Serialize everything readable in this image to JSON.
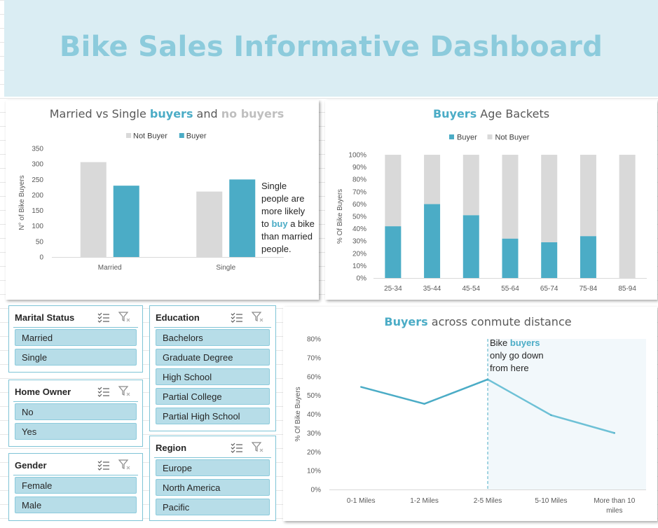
{
  "dashboard": {
    "title": "Bike Sales Informative Dashboard"
  },
  "chart_data": [
    {
      "type": "bar",
      "title": {
        "prefix": "Married vs Single ",
        "buyers": "buyers",
        "middle": " and ",
        "no_buyers": "no buyers"
      },
      "legend": [
        "Not Buyer",
        "Buyer"
      ],
      "categories": [
        "Married",
        "Single"
      ],
      "series": [
        {
          "name": "Not Buyer",
          "values": [
            306,
            211
          ]
        },
        {
          "name": "Buyer",
          "values": [
            230,
            250
          ]
        }
      ],
      "ylabel": "N° of Bike Buyers",
      "ylim": [
        0,
        350
      ],
      "yticks": [
        "0",
        "50",
        "100",
        "150",
        "200",
        "250",
        "300",
        "350"
      ],
      "annotation": [
        "Single",
        "people are",
        "more likely",
        "to ",
        "buy",
        " a bike",
        "than married",
        "people."
      ],
      "colors": {
        "Not Buyer": "#d9d9d9",
        "Buyer": "#4bacc6"
      }
    },
    {
      "type": "bar",
      "stacked": "percent",
      "title": {
        "buyers": "Buyers",
        "rest": " Age Backets"
      },
      "legend": [
        "Buyer",
        "Not Buyer"
      ],
      "categories": [
        "25-34",
        "35-44",
        "45-54",
        "55-64",
        "65-74",
        "75-84",
        "85-94"
      ],
      "series": [
        {
          "name": "Buyer",
          "values": [
            42,
            60,
            51,
            32,
            29,
            34,
            0
          ]
        },
        {
          "name": "Not Buyer",
          "values": [
            58,
            40,
            49,
            68,
            71,
            66,
            100
          ]
        }
      ],
      "ylabel": "% Of Bike Buyers",
      "ylim": [
        0,
        100
      ],
      "yticks": [
        "0%",
        "10%",
        "20%",
        "30%",
        "40%",
        "50%",
        "60%",
        "70%",
        "80%",
        "90%",
        "100%"
      ],
      "colors": {
        "Buyer": "#4bacc6",
        "Not Buyer": "#d9d9d9"
      }
    },
    {
      "type": "line",
      "title": {
        "buyers": "Buyers",
        "rest": " across conmute distance"
      },
      "categories": [
        "0-1 Miles",
        "1-2 Miles",
        "2-5 Miles",
        "5-10 Miles",
        "More than 10 miles"
      ],
      "category_lines": [
        [
          "0-1 Miles"
        ],
        [
          "1-2 Miles"
        ],
        [
          "2-5 Miles"
        ],
        [
          "5-10 Miles"
        ],
        [
          "More than 10",
          "miles"
        ]
      ],
      "values": [
        54.5,
        45.5,
        58.5,
        39.5,
        30
      ],
      "ylabel": "% Of Bike Buyers",
      "ylim": [
        0,
        80
      ],
      "yticks": [
        "0%",
        "10%",
        "20%",
        "30%",
        "40%",
        "50%",
        "60%",
        "70%",
        "80%"
      ],
      "annotation": [
        "Bike ",
        "buyers",
        "only go down",
        "from here"
      ],
      "colors": {
        "line": "#4bacc6",
        "line_after": "#6ec1d6",
        "shade": "#f2f8fb"
      }
    }
  ],
  "slicers": {
    "marital": {
      "title": "Marital Status",
      "items": [
        "Married",
        "Single"
      ]
    },
    "home": {
      "title": "Home Owner",
      "items": [
        "No",
        "Yes"
      ]
    },
    "gender": {
      "title": "Gender",
      "items": [
        "Female",
        "Male"
      ]
    },
    "education": {
      "title": "Education",
      "items": [
        "Bachelors",
        "Graduate Degree",
        "High School",
        "Partial College",
        "Partial High School"
      ]
    },
    "region": {
      "title": "Region",
      "items": [
        "Europe",
        "North America",
        "Pacific"
      ]
    }
  }
}
